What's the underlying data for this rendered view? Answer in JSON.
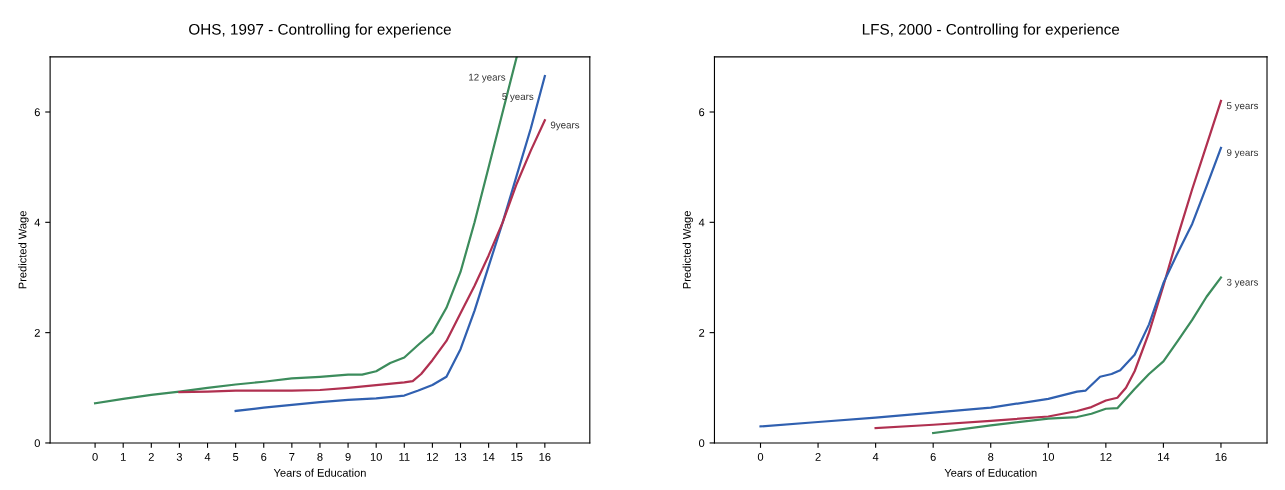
{
  "chart_data": [
    {
      "type": "line",
      "title": "OHS, 1997 - Controlling for experience",
      "xlabel": "Years of Education",
      "ylabel": "Predicted Wage",
      "xlim": [
        -1.6,
        17.6
      ],
      "xticks": [
        0,
        1,
        2,
        3,
        4,
        5,
        6,
        7,
        8,
        9,
        10,
        11,
        12,
        13,
        14,
        15,
        16
      ],
      "ylim": [
        0,
        7
      ],
      "yticks": [
        0,
        2,
        4,
        6
      ],
      "grid": false,
      "legend": false,
      "series": [
        {
          "name": "12 years",
          "color": "#3c8c5c",
          "x": [
            0,
            1,
            2,
            3,
            4,
            5,
            6,
            7,
            8,
            9,
            9.5,
            10,
            10.5,
            11,
            11.5,
            12,
            12.5,
            13,
            13.5,
            14,
            14.5,
            15
          ],
          "values": [
            0.72,
            0.8,
            0.87,
            0.93,
            1.0,
            1.06,
            1.11,
            1.17,
            1.2,
            1.24,
            1.24,
            1.3,
            1.45,
            1.55,
            1.78,
            2.0,
            2.45,
            3.1,
            4.0,
            5.0,
            6.0,
            7.0
          ]
        },
        {
          "name": "5 years",
          "color": "#3060b0",
          "x": [
            5,
            6,
            7,
            8,
            9,
            10,
            11,
            11.5,
            12,
            12.5,
            13,
            13.5,
            14,
            14.5,
            15,
            15.5,
            16
          ],
          "values": [
            0.58,
            0.64,
            0.69,
            0.74,
            0.78,
            0.81,
            0.86,
            0.95,
            1.05,
            1.2,
            1.7,
            2.4,
            3.2,
            4.0,
            4.85,
            5.7,
            6.65
          ]
        },
        {
          "name": "9years",
          "color": "#b03050",
          "x": [
            3,
            4,
            5,
            6,
            7,
            8,
            9,
            10,
            11,
            11.3,
            11.6,
            12,
            12.5,
            13,
            13.5,
            14,
            14.5,
            15,
            15.5,
            16
          ],
          "values": [
            0.92,
            0.93,
            0.95,
            0.95,
            0.95,
            0.96,
            1.0,
            1.05,
            1.1,
            1.12,
            1.25,
            1.5,
            1.85,
            2.35,
            2.85,
            3.4,
            4.0,
            4.7,
            5.3,
            5.85
          ]
        }
      ]
    },
    {
      "type": "line",
      "title": "LFS, 2000 - Controlling for experience",
      "xlabel": "Years of Education",
      "ylabel": "Predicted Wage",
      "xlim": [
        -1.6,
        17.6
      ],
      "xticks": [
        0,
        2,
        4,
        6,
        8,
        10,
        12,
        14,
        16
      ],
      "ylim": [
        0,
        7
      ],
      "yticks": [
        0,
        2,
        4,
        6
      ],
      "grid": false,
      "legend": false,
      "series": [
        {
          "name": "5 years",
          "color": "#b03050",
          "x": [
            4,
            6,
            8,
            10,
            11,
            11.5,
            12,
            12.4,
            12.7,
            13,
            13.5,
            14,
            14.5,
            15,
            15.5,
            16
          ],
          "values": [
            0.27,
            0.33,
            0.4,
            0.48,
            0.58,
            0.65,
            0.77,
            0.82,
            1.0,
            1.3,
            2.0,
            2.85,
            3.75,
            4.6,
            5.4,
            6.2
          ]
        },
        {
          "name": "9 years",
          "color": "#3060b0",
          "x": [
            0,
            2,
            4,
            6,
            8,
            10,
            11,
            11.3,
            11.8,
            12.2,
            12.5,
            13,
            13.5,
            14,
            14.5,
            15,
            15.5,
            16
          ],
          "values": [
            0.3,
            0.38,
            0.46,
            0.55,
            0.64,
            0.8,
            0.93,
            0.95,
            1.2,
            1.25,
            1.32,
            1.6,
            2.15,
            2.9,
            3.45,
            3.97,
            4.65,
            5.35
          ]
        },
        {
          "name": "3 years",
          "color": "#3c8c5c",
          "x": [
            6,
            8,
            10,
            11,
            11.5,
            12,
            12.4,
            13,
            13.5,
            14,
            14.5,
            15,
            15.5,
            16
          ],
          "values": [
            0.18,
            0.32,
            0.44,
            0.47,
            0.53,
            0.62,
            0.63,
            0.98,
            1.25,
            1.48,
            1.85,
            2.23,
            2.65,
            3.0
          ]
        }
      ]
    }
  ]
}
